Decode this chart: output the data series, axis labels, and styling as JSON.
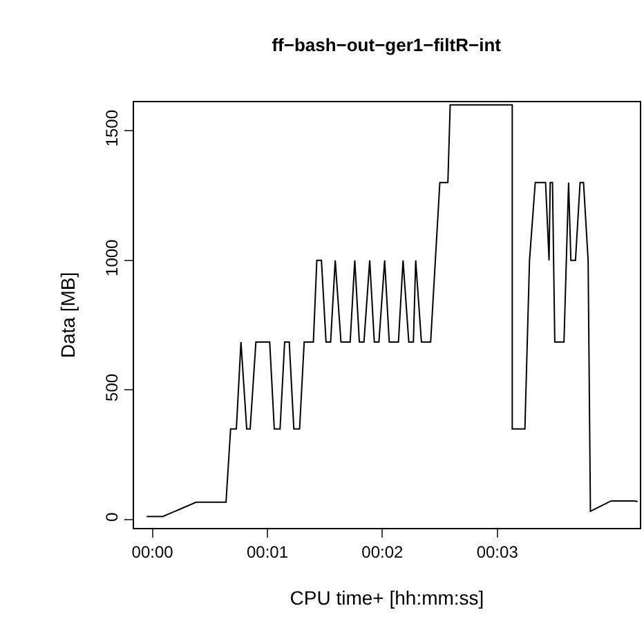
{
  "chart_data": {
    "type": "line",
    "title": "ff−bash−out−ger1−filtR−int",
    "xlabel": "CPU time+ [hh:mm:ss]",
    "ylabel": "Data [MB]",
    "xlim": [
      -0.16,
      4.24
    ],
    "ylim": [
      -32,
      1610
    ],
    "xticks": [
      {
        "value": 0,
        "label": "00:00"
      },
      {
        "value": 1,
        "label": "00:01"
      },
      {
        "value": 2,
        "label": "00:02"
      },
      {
        "value": 3,
        "label": "00:03"
      }
    ],
    "yticks": [
      0,
      500,
      1000,
      1500
    ],
    "marker": "none",
    "line_style": "solid",
    "series": [
      {
        "color": "#000000",
        "x": [
          -0.05,
          0.09,
          0.38,
          0.64,
          0.68,
          0.73,
          0.77,
          0.82,
          0.85,
          0.9,
          1.02,
          1.06,
          1.11,
          1.15,
          1.19,
          1.23,
          1.28,
          1.32,
          1.4,
          1.43,
          1.47,
          1.51,
          1.55,
          1.59,
          1.64,
          1.72,
          1.76,
          1.8,
          1.84,
          1.89,
          1.93,
          1.97,
          2.02,
          2.06,
          2.14,
          2.18,
          2.23,
          2.27,
          2.29,
          2.34,
          2.42,
          2.5,
          2.57,
          2.59,
          3.13,
          3.13,
          3.24,
          3.28,
          3.33,
          3.42,
          3.45,
          3.46,
          3.48,
          3.5,
          3.58,
          3.62,
          3.64,
          3.68,
          3.72,
          3.75,
          3.79,
          3.81,
          3.99,
          4.19,
          4.22
        ],
        "values": [
          12,
          12,
          67,
          67,
          350,
          350,
          685,
          350,
          350,
          685,
          685,
          350,
          350,
          685,
          685,
          350,
          350,
          685,
          685,
          1000,
          1000,
          685,
          685,
          1000,
          685,
          685,
          1000,
          685,
          685,
          1000,
          685,
          685,
          1000,
          685,
          685,
          1000,
          685,
          685,
          1000,
          685,
          685,
          1300,
          1300,
          1600,
          1600,
          350,
          350,
          1000,
          1300,
          1300,
          1000,
          1300,
          1300,
          685,
          685,
          1300,
          1000,
          1000,
          1300,
          1300,
          1000,
          32,
          72,
          72,
          70
        ]
      }
    ]
  }
}
